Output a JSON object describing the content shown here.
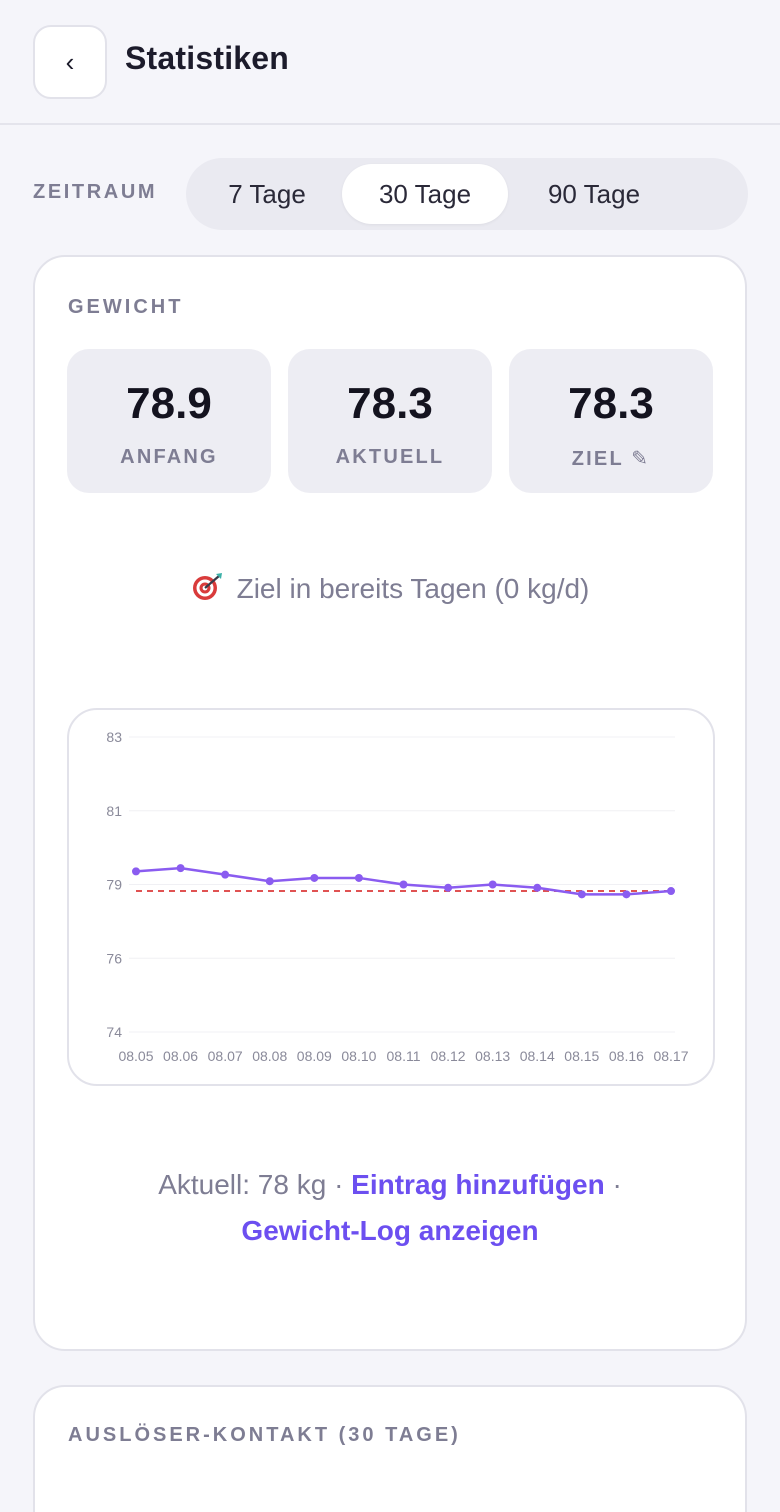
{
  "header": {
    "back_label": "‹",
    "title": "Statistiken"
  },
  "range": {
    "label": "ZEITRAUM",
    "options": [
      "7 Tage",
      "30 Tage",
      "90 Tage"
    ],
    "selected": "30 Tage"
  },
  "weight": {
    "section_label": "GEWICHT",
    "stats": [
      {
        "value": "78.9",
        "label": "ANFANG"
      },
      {
        "value": "78.3",
        "label": "AKTUELL"
      },
      {
        "value": "78.3",
        "label": "ZIEL ✎"
      }
    ],
    "goal_text": "Ziel in bereits Tagen (0 kg/d)",
    "goal_icon": "target-icon",
    "current_text": "Aktuell: 78 kg ·",
    "add_entry_link": "Eintrag hinzufügen",
    "separator": "·",
    "log_link": "Gewicht-Log anzeigen"
  },
  "chart_data": {
    "type": "line",
    "x": [
      "08.05",
      "08.06",
      "08.07",
      "08.08",
      "08.09",
      "08.10",
      "08.11",
      "08.12",
      "08.13",
      "08.14",
      "08.15",
      "08.16",
      "08.17"
    ],
    "series": [
      {
        "values": [
          78.9,
          79.0,
          78.8,
          78.6,
          78.7,
          78.7,
          78.5,
          78.4,
          78.5,
          78.4,
          78.2,
          78.2,
          78.3
        ],
        "color": "#8a5cf0"
      }
    ],
    "goal_line": {
      "value": 78.3,
      "color": "#e05252",
      "style": "dashed"
    },
    "ytick_labels": [
      "83",
      "81",
      "79",
      "76",
      "74"
    ],
    "ylim": [
      74,
      83
    ],
    "grid": true,
    "title": "",
    "xlabel": "",
    "ylabel": ""
  },
  "triggers": {
    "section_label": "AUSLÖSER-KONTAKT (30 TAGE)"
  },
  "colors": {
    "accent": "#6c4ff0",
    "line": "#8a5cf0",
    "goal": "#e05252",
    "muted": "#7e7d93"
  }
}
